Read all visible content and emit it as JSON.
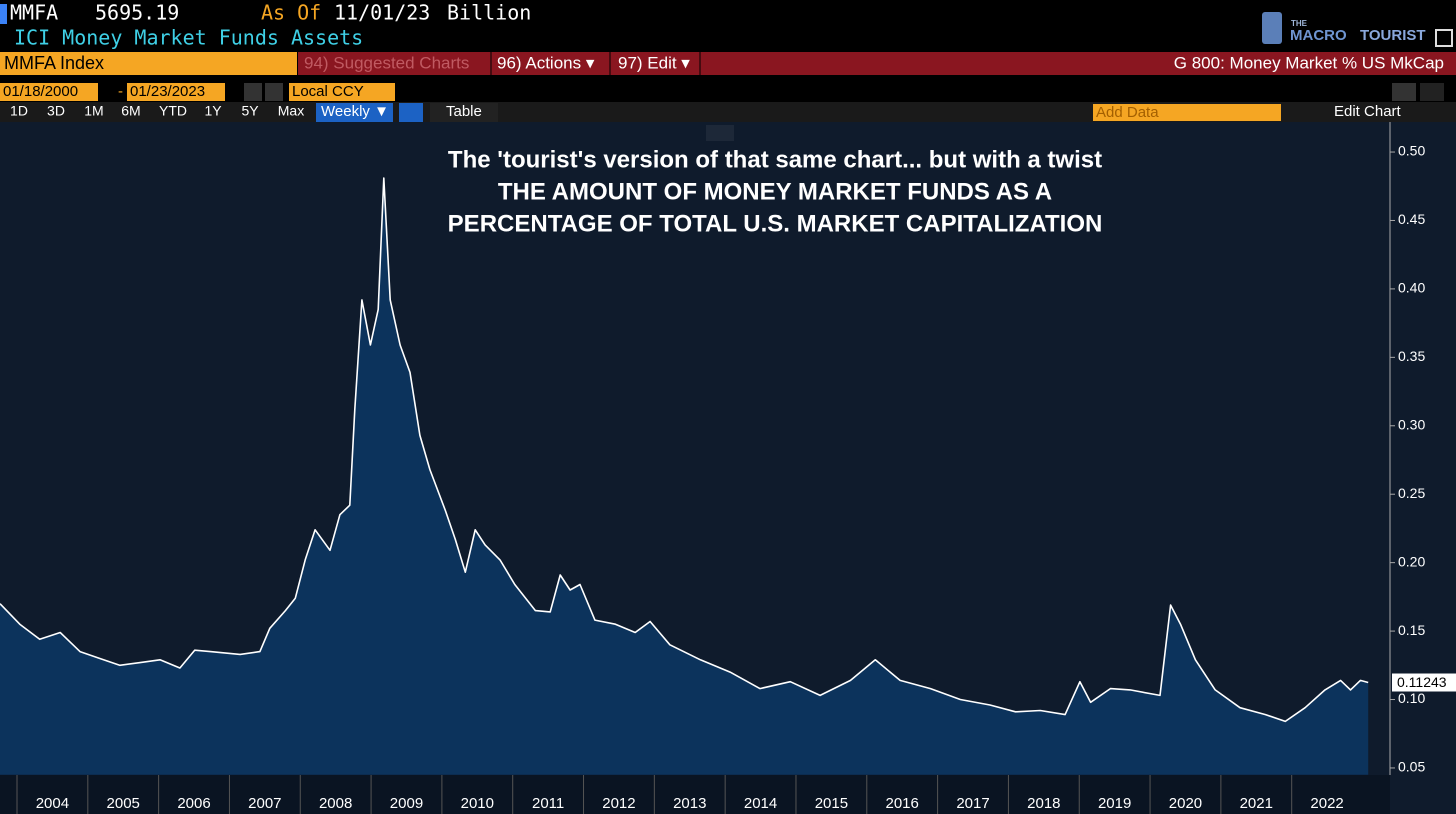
{
  "header": {
    "ticker": "MMFA",
    "price": "5695.19",
    "as_of_label": "As Of",
    "as_of": "11/01/23",
    "unit": "Billion",
    "description": "ICI Money Market Funds Assets"
  },
  "logo": {
    "small": "THE",
    "brand_a": "MACRO",
    "brand_b": "TOURIST"
  },
  "toolbar": {
    "security": "MMFA Index",
    "menus": [
      "94) Suggested Charts",
      "96) Actions ▾",
      "97) Edit ▾"
    ],
    "chart_name": "G 800: Money Market % US MkCap"
  },
  "dates": {
    "start": "01/18/2000",
    "separator": "-",
    "end": "01/23/2023",
    "currency": "Local CCY"
  },
  "periods": [
    "1D",
    "3D",
    "1M",
    "6M",
    "YTD",
    "1Y",
    "5Y",
    "Max"
  ],
  "frequency": "Weekly ▼",
  "table_button": "Table",
  "add_data": "Add Data",
  "edit_chart": "Edit Chart",
  "chart_data": {
    "type": "area",
    "annotation": [
      "The 'tourist's version of that same chart... but with a twist",
      "THE AMOUNT OF MONEY MARKET FUNDS AS A",
      "PERCENTAGE OF TOTAL U.S. MARKET CAPITALIZATION"
    ],
    "x": [
      2003.76,
      2004.04,
      2004.32,
      2004.61,
      2004.89,
      2005.17,
      2005.45,
      2005.74,
      2006.02,
      2006.3,
      2006.51,
      2006.73,
      2007.15,
      2007.43,
      2007.57,
      2007.79,
      2007.93,
      2008.07,
      2008.21,
      2008.42,
      2008.56,
      2008.7,
      2008.77,
      2008.87,
      2008.99,
      2009.1,
      2009.18,
      2009.27,
      2009.41,
      2009.55,
      2009.69,
      2009.83,
      2010.05,
      2010.19,
      2010.33,
      2010.47,
      2010.61,
      2010.82,
      2011.03,
      2011.32,
      2011.53,
      2011.67,
      2011.81,
      2011.95,
      2012.16,
      2012.45,
      2012.73,
      2012.94,
      2013.22,
      2013.65,
      2014.07,
      2014.49,
      2014.92,
      2015.34,
      2015.77,
      2016.12,
      2016.47,
      2016.9,
      2017.32,
      2017.74,
      2018.1,
      2018.45,
      2018.8,
      2019.01,
      2019.16,
      2019.44,
      2019.72,
      2020.14,
      2020.29,
      2020.43,
      2020.64,
      2020.92,
      2021.27,
      2021.63,
      2021.91,
      2022.19,
      2022.47,
      2022.69,
      2022.83,
      2022.97,
      2023.08
    ],
    "series": [
      {
        "name": "Money Market % US MkCap",
        "color": "#ffffff",
        "fill": "#0c335c",
        "values": [
          0.17,
          0.155,
          0.144,
          0.149,
          0.135,
          0.13,
          0.125,
          0.127,
          0.129,
          0.123,
          0.136,
          0.135,
          0.133,
          0.135,
          0.152,
          0.165,
          0.174,
          0.202,
          0.224,
          0.209,
          0.235,
          0.242,
          0.312,
          0.392,
          0.359,
          0.385,
          0.481,
          0.392,
          0.359,
          0.339,
          0.293,
          0.268,
          0.238,
          0.217,
          0.193,
          0.224,
          0.213,
          0.202,
          0.184,
          0.165,
          0.164,
          0.191,
          0.18,
          0.184,
          0.158,
          0.155,
          0.149,
          0.157,
          0.14,
          0.129,
          0.12,
          0.108,
          0.113,
          0.103,
          0.114,
          0.129,
          0.114,
          0.108,
          0.1,
          0.096,
          0.091,
          0.092,
          0.089,
          0.113,
          0.098,
          0.108,
          0.107,
          0.103,
          0.169,
          0.155,
          0.129,
          0.107,
          0.094,
          0.089,
          0.084,
          0.094,
          0.107,
          0.114,
          0.107,
          0.114,
          0.11243
        ]
      }
    ],
    "xlim": [
      2003.76,
      2023.36
    ],
    "xticks": [
      2004,
      2005,
      2006,
      2007,
      2008,
      2009,
      2010,
      2011,
      2012,
      2013,
      2014,
      2015,
      2016,
      2017,
      2018,
      2019,
      2020,
      2021,
      2022
    ],
    "ylim": [
      0.045,
      0.515
    ],
    "yticks": [
      {
        "value": 0.05,
        "label": "0.05"
      },
      {
        "value": 0.1,
        "label": "0.10"
      },
      {
        "value": 0.15,
        "label": "0.15"
      },
      {
        "value": 0.2,
        "label": "0.20"
      },
      {
        "value": 0.25,
        "label": "0.25"
      },
      {
        "value": 0.3,
        "label": "0.30"
      },
      {
        "value": 0.35,
        "label": "0.35"
      },
      {
        "value": 0.4,
        "label": "0.40"
      },
      {
        "value": 0.45,
        "label": "0.45"
      },
      {
        "value": 0.5,
        "label": "0.50"
      }
    ],
    "background": "#0f1b2c"
  }
}
